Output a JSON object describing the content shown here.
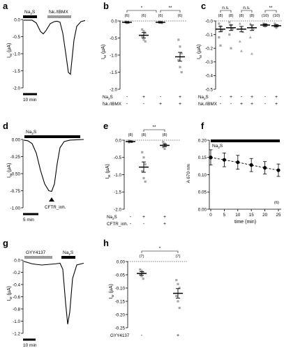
{
  "chart_data": [
    {
      "panel": "a",
      "type": "line",
      "bars": [
        "Na2S",
        "fsk./IBMX"
      ],
      "ylabel": "IM (µA)",
      "yticks": [
        "0.0",
        "-0.5",
        "-1.0",
        "-1.5",
        "-2.0"
      ],
      "ylim": [
        -2.0,
        0.0
      ],
      "scalebar": "10 min"
    },
    {
      "panel": "b",
      "type": "scatter",
      "ylabel": "IM (µA)",
      "yticks": [
        "0.0",
        "-0.5",
        "-1.0",
        "-1.5",
        "-2.0"
      ],
      "ylim": [
        -2.0,
        0.0
      ],
      "n_labels": [
        "(6)",
        "(6)",
        "(6)",
        "(6)"
      ],
      "sig": [
        "*",
        "**"
      ],
      "row_labels": [
        "Na2S",
        "fsk./IBMX"
      ],
      "rows": [
        [
          "-",
          "+",
          "-",
          "+"
        ],
        [
          "-",
          "-",
          "+",
          "+"
        ]
      ],
      "means": [
        -0.04,
        -0.42,
        -0.04,
        -1.05
      ],
      "sem": [
        0.02,
        0.08,
        0.02,
        0.13
      ],
      "points": [
        [
          -0.02,
          -0.04,
          -0.05,
          -0.03,
          -0.06,
          -0.05
        ],
        [
          -0.25,
          -0.3,
          -0.35,
          -0.45,
          -0.55,
          -0.6
        ],
        [
          -0.02,
          -0.03,
          -0.05,
          -0.04,
          -0.05,
          -0.06
        ],
        [
          -0.55,
          -0.75,
          -0.95,
          -1.15,
          -1.35,
          -1.5
        ]
      ]
    },
    {
      "panel": "c",
      "type": "scatter",
      "ylabel": "IM (µA)",
      "yticks": [
        "-0.0",
        "-0.1",
        "-0.2",
        "-0.3",
        "-0.4",
        "-0.5"
      ],
      "ylim": [
        -0.5,
        0.0
      ],
      "n_labels": [
        "(8)",
        "(8)",
        "(8)",
        "(8)",
        "(10)",
        "(10)"
      ],
      "sig": [
        "n.s.",
        "n.s.",
        "**"
      ],
      "row_labels": [
        "Na2S",
        "fsk./IBMX"
      ],
      "rows": [
        [
          "-",
          "+",
          "-",
          "+",
          "-",
          "+"
        ],
        [
          "-",
          "-",
          "+",
          "+",
          "-",
          "+"
        ]
      ],
      "means": [
        -0.06,
        -0.05,
        -0.06,
        -0.05,
        -0.03,
        -0.035
      ],
      "sem": [
        0.02,
        0.02,
        0.02,
        0.02,
        0.008,
        0.008
      ],
      "points": [
        [
          -0.02,
          -0.04,
          -0.07,
          -0.12,
          -0.18
        ],
        [
          -0.01,
          -0.03,
          -0.06,
          -0.1,
          -0.2
        ],
        [
          -0.02,
          -0.05,
          -0.08,
          -0.15,
          -0.22
        ],
        [
          -0.02,
          -0.04,
          -0.06,
          -0.12,
          -0.24
        ],
        [
          -0.02,
          -0.025,
          -0.03,
          -0.035,
          -0.04
        ],
        [
          -0.02,
          -0.03,
          -0.035,
          -0.04,
          -0.05
        ]
      ]
    },
    {
      "panel": "d",
      "type": "line",
      "bars": [
        "Na2S"
      ],
      "ylabel": "IM (µA)",
      "yticks": [
        "0.00",
        "-0.25",
        "-0.50",
        "-0.75",
        "-1.00"
      ],
      "ylim": [
        -1.0,
        0.0
      ],
      "arrow_label": "CFTR_inh.",
      "scalebar": "5 min"
    },
    {
      "panel": "e",
      "type": "scatter",
      "ylabel": "IM (µA)",
      "yticks": [
        "0.0",
        "-0.5",
        "-1.0",
        "-1.5",
        "-2.0"
      ],
      "ylim": [
        -2.0,
        0.0
      ],
      "n_labels": [
        "(8)",
        "(8)",
        "(8)"
      ],
      "sig": [
        "**"
      ],
      "row_labels": [
        "Na2S",
        "CFTR_inh."
      ],
      "rows": [
        [
          "-",
          "+",
          "+"
        ],
        [
          "-",
          "-",
          "+"
        ]
      ],
      "means": [
        -0.04,
        -0.78,
        -0.15
      ],
      "sem": [
        0.02,
        0.15,
        0.04
      ],
      "points": [
        [
          -0.01,
          -0.03,
          -0.05,
          -0.06,
          -0.04
        ],
        [
          -0.35,
          -0.5,
          -0.7,
          -0.9,
          -1.1,
          -1.2
        ],
        [
          -0.05,
          -0.1,
          -0.15,
          -0.2,
          -0.25
        ]
      ]
    },
    {
      "panel": "f",
      "type": "line",
      "bar_label": "Na2S",
      "ylabel": "A 670 nm",
      "xlabel": "time (min)",
      "x": [
        0,
        5,
        10,
        15,
        20,
        25
      ],
      "xticks": [
        "0",
        "5",
        "10",
        "15",
        "20",
        "25"
      ],
      "yticks": [
        "0.00",
        "0.05",
        "0.10",
        "0.15",
        "0.20"
      ],
      "ylim": [
        0.0,
        0.2
      ],
      "values": [
        0.15,
        0.143,
        0.136,
        0.128,
        0.12,
        0.113
      ],
      "errors": [
        0.022,
        0.02,
        0.02,
        0.019,
        0.018,
        0.018
      ],
      "n_label": "(6)"
    },
    {
      "panel": "g",
      "type": "line",
      "bars": [
        "GYY4137",
        "Na2S"
      ],
      "ylabel": "IM (µA)",
      "yticks": [
        "0.0",
        "-0.2",
        "-0.4",
        "-0.6",
        "-0.8",
        "-1.0",
        "-1.2"
      ],
      "ylim": [
        -1.2,
        0.0
      ],
      "scalebar": "10 min"
    },
    {
      "panel": "h",
      "type": "scatter",
      "ylabel": "IM (µA)",
      "yticks": [
        "0.00",
        "-0.05",
        "-0.10",
        "-0.15",
        "-0.20",
        "-0.25"
      ],
      "ylim": [
        -0.25,
        0.0
      ],
      "n_labels": [
        "(7)",
        "(7)"
      ],
      "sig": [
        "*"
      ],
      "row_labels": [
        "GYY4137"
      ],
      "rows": [
        [
          "-",
          "+"
        ]
      ],
      "means": [
        -0.045,
        -0.12
      ],
      "sem": [
        0.007,
        0.018
      ],
      "points": [
        [
          -0.03,
          -0.035,
          -0.04,
          -0.05,
          -0.055,
          -0.065
        ],
        [
          -0.07,
          -0.085,
          -0.1,
          -0.13,
          -0.15,
          -0.175
        ]
      ]
    }
  ]
}
